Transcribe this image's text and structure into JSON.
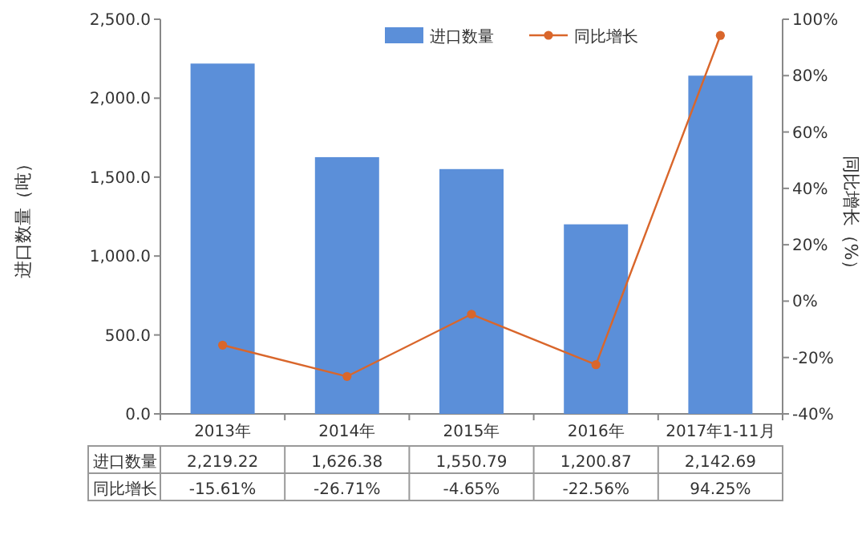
{
  "chart_data": {
    "type": "bar",
    "ylabel": "进口数量（吨）",
    "y2label": "同比增长（%）",
    "categories": [
      "2013年",
      "2014年",
      "2015年",
      "2016年",
      "2017年1-11月"
    ],
    "series": [
      {
        "name": "进口数量",
        "color": "#5b8fd9",
        "values": [
          2219.22,
          1626.38,
          1550.79,
          1200.87,
          2142.69
        ],
        "value_labels": [
          "2,219.22",
          "1,626.38",
          "1,550.79",
          "1,200.87",
          "2,142.69"
        ]
      },
      {
        "name": "同比增长",
        "type": "line",
        "axis": "y2",
        "color": "#d9662b",
        "marker": "circle",
        "values": [
          -15.61,
          -26.71,
          -4.65,
          -22.56,
          94.25
        ],
        "value_labels": [
          "-15.61%",
          "-26.71%",
          "-4.65%",
          "-22.56%",
          "94.25%"
        ]
      }
    ],
    "ylim": [
      0,
      2500
    ],
    "yticks": [
      {
        "value": 0,
        "label": "0.0"
      },
      {
        "value": 500,
        "label": "500.0"
      },
      {
        "value": 1000,
        "label": "1,000.0"
      },
      {
        "value": 1500,
        "label": "1,500.0"
      },
      {
        "value": 2000,
        "label": "2,000.0"
      },
      {
        "value": 2500,
        "label": "2,500.0"
      }
    ],
    "y2lim": [
      -40,
      100
    ],
    "y2ticks": [
      {
        "value": -40,
        "label": "-40%"
      },
      {
        "value": -20,
        "label": "-20%"
      },
      {
        "value": 0,
        "label": "0%"
      },
      {
        "value": 20,
        "label": "20%"
      },
      {
        "value": 40,
        "label": "40%"
      },
      {
        "value": 60,
        "label": "60%"
      },
      {
        "value": 80,
        "label": "80%"
      },
      {
        "value": 100,
        "label": "100%"
      }
    ],
    "legend": "top right",
    "grid": false
  }
}
